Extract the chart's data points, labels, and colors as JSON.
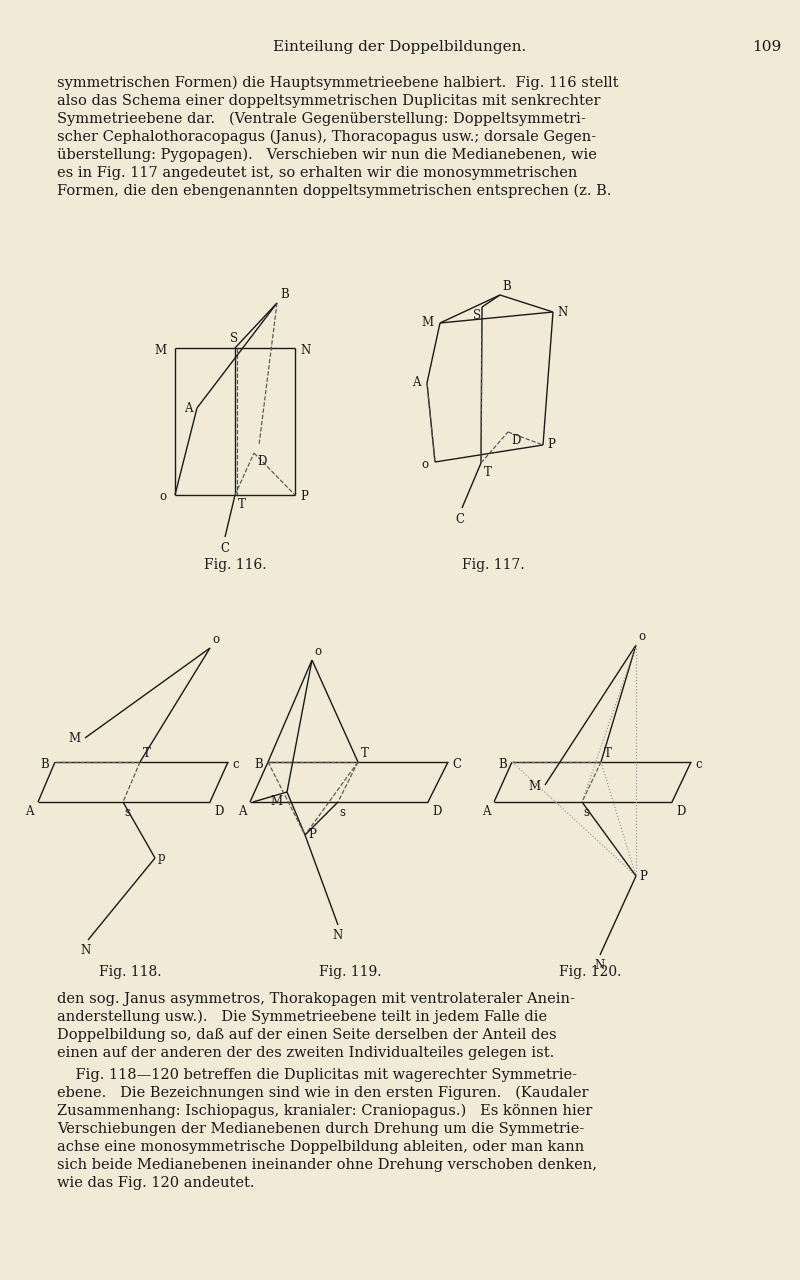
{
  "bg_color": "#f0ead6",
  "text_color": "#1a1a1a",
  "lc": "#1a1a1a",
  "dc": "#555555",
  "dotc": "#999999",
  "header": "Einteilung der Doppelbildungen.",
  "page_num": "109",
  "para1_lines": [
    "symmetrischen Formen) die Hauptsymmetrieebene halbiert.  Fig. 116 stellt",
    "also das Schema einer doppeltsymmetrischen Duplicitas mit senkrechter",
    "Symmetrieebene dar.   (Ventrale Gegenüberstellung: Doppeltsymmetri-",
    "scher Cephalothoracopagus (Janus), Thoracopagus usw.; dorsale Gegen-",
    "überstellung: Pygopagen).   Verschieben wir nun die Medianebenen, wie",
    "es in Fig. 117 angedeutet ist, so erhalten wir die monosymmetrischen",
    "Formen, die den ebengenannten doppeltsymmetrischen entsprechen (z. B."
  ],
  "cap116": "Fig. 116.",
  "cap117": "Fig. 117.",
  "cap118": "Fig. 118.",
  "cap119": "Fig. 119.",
  "cap120": "Fig. 120.",
  "para2_lines": [
    "den sog. Janus asymmetros, Thorakopagen mit ventrolateraler Anein-",
    "anderstellung usw.).   Die Symmetrieebene teilt in jedem Falle die",
    "Doppelbildung so, daß auf der einen Seite derselben der Anteil des",
    "einen auf der anderen der des zweiten Individualteiles gelegen ist."
  ],
  "para3_lines": [
    "    Fig. 118—120 betreffen die Duplicitas mit wagerechter Symmetrie-",
    "ebene.   Die Bezeichnungen sind wie in den ersten Figuren.   (Kaudaler",
    "Zusammenhang: Ischiopagus, kranialer: Craniopagus.)   Es können hier",
    "Verschiebungen der Medianebenen durch Drehung um die Symmetrie-",
    "achse eine monosymmetrische Doppelbildung ableiten, oder man kann",
    "sich beide Medianebenen ineinander ohne Drehung verschoben denken,",
    "wie das Fig. 120 andeutet."
  ]
}
